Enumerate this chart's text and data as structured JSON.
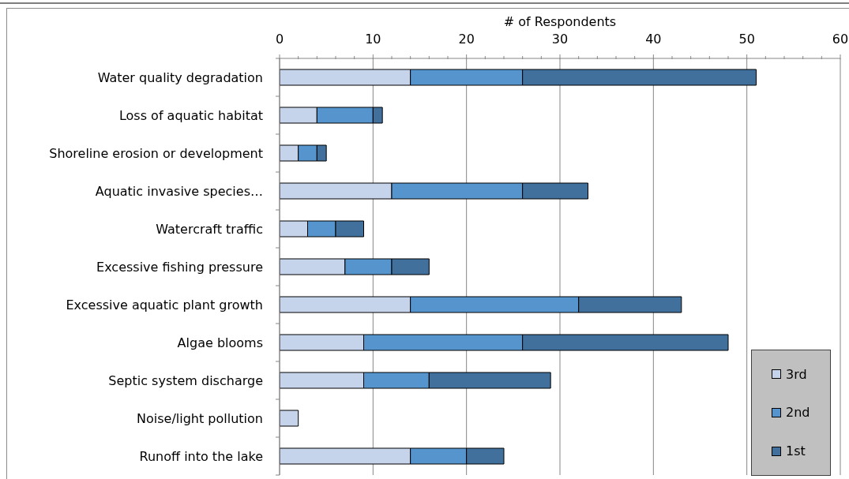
{
  "chart_data": {
    "type": "bar",
    "orientation": "horizontal",
    "stacked": true,
    "xlabel": "# of Respondents",
    "categories": [
      "Water quality degradation",
      "Loss of aquatic habitat",
      "Shoreline erosion or development",
      "Aquatic invasive species…",
      "Watercraft traffic",
      "Excessive fishing pressure",
      "Excessive aquatic plant growth",
      "Algae blooms",
      "Septic system discharge",
      "Noise/light pollution",
      "Runoff into the lake"
    ],
    "series": [
      {
        "name": "3rd",
        "color": "#c5d4ea",
        "values": [
          14,
          4,
          2,
          12,
          3,
          7,
          14,
          9,
          9,
          2,
          14
        ]
      },
      {
        "name": "2nd",
        "color": "#5594cc",
        "values": [
          12,
          6,
          2,
          14,
          3,
          5,
          18,
          17,
          7,
          0,
          6
        ]
      },
      {
        "name": "1st",
        "color": "#41709c",
        "values": [
          25,
          1,
          1,
          7,
          3,
          4,
          11,
          22,
          13,
          0,
          4
        ]
      }
    ],
    "xlim": [
      0,
      60
    ],
    "xticks": [
      0,
      {
        "value": 2,
        "label": null
      },
      {
        "value": 4,
        "label": null
      },
      {
        "value": 6,
        "label": null
      },
      {
        "value": 8,
        "label": null
      },
      10,
      {
        "value": 12,
        "label": null
      },
      {
        "value": 14,
        "label": null
      },
      {
        "value": 16,
        "label": null
      },
      {
        "value": 18,
        "label": null
      },
      20,
      {
        "value": 22,
        "label": null
      },
      {
        "value": 24,
        "label": null
      },
      {
        "value": 26,
        "label": null
      },
      {
        "value": 28,
        "label": null
      },
      30,
      {
        "value": 32,
        "label": null
      },
      {
        "value": 34,
        "label": null
      },
      {
        "value": 36,
        "label": null
      },
      {
        "value": 38,
        "label": null
      },
      40,
      {
        "value": 42,
        "label": null
      },
      {
        "value": 44,
        "label": null
      },
      {
        "value": 46,
        "label": null
      },
      {
        "value": 48,
        "label": null
      },
      50,
      {
        "value": 52,
        "label": null
      },
      {
        "value": 54,
        "label": null
      },
      {
        "value": 56,
        "label": null
      },
      {
        "value": 58,
        "label": null
      },
      60
    ],
    "grid": "x",
    "legend": "bottom right"
  }
}
